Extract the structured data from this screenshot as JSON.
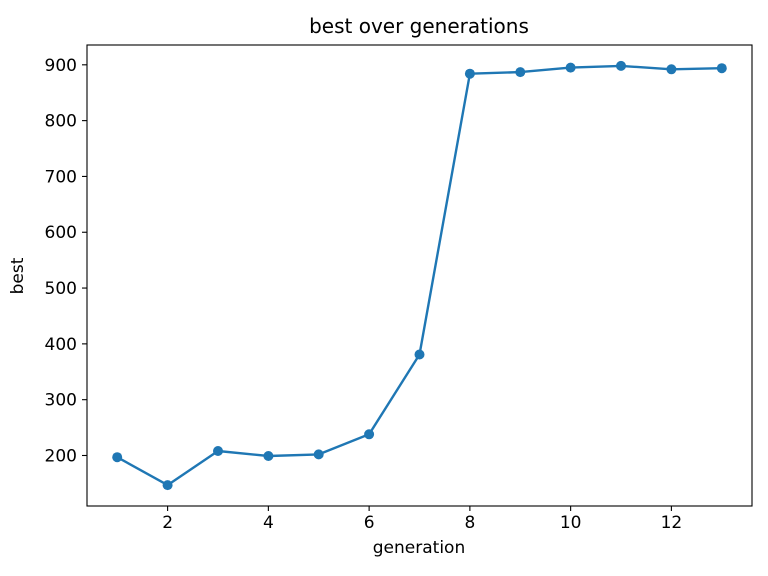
{
  "figure": {
    "background": "#ffffff",
    "text_color": "#000000",
    "spine_color": "#000000"
  },
  "chart_data": {
    "type": "line",
    "title": "best over generations",
    "xlabel": "generation",
    "ylabel": "best",
    "x": [
      1,
      2,
      3,
      4,
      5,
      6,
      7,
      8,
      9,
      10,
      11,
      12,
      13
    ],
    "y": [
      197,
      147,
      208,
      199,
      202,
      238,
      381,
      884,
      887,
      895,
      898,
      892,
      894
    ],
    "series": [
      {
        "name": "best",
        "values": [
          197,
          147,
          208,
          199,
          202,
          238,
          381,
          884,
          887,
          895,
          898,
          892,
          894
        ]
      }
    ],
    "xticks": [
      2,
      4,
      6,
      8,
      10,
      12
    ],
    "yticks": [
      200,
      300,
      400,
      500,
      600,
      700,
      800,
      900
    ],
    "xlim": [
      0.4,
      13.6
    ],
    "ylim": [
      109.5,
      935.5
    ],
    "line_color": "#1f77b4",
    "marker": "circle",
    "marker_color": "#1f77b4",
    "grid": false,
    "legend_position": "none"
  }
}
